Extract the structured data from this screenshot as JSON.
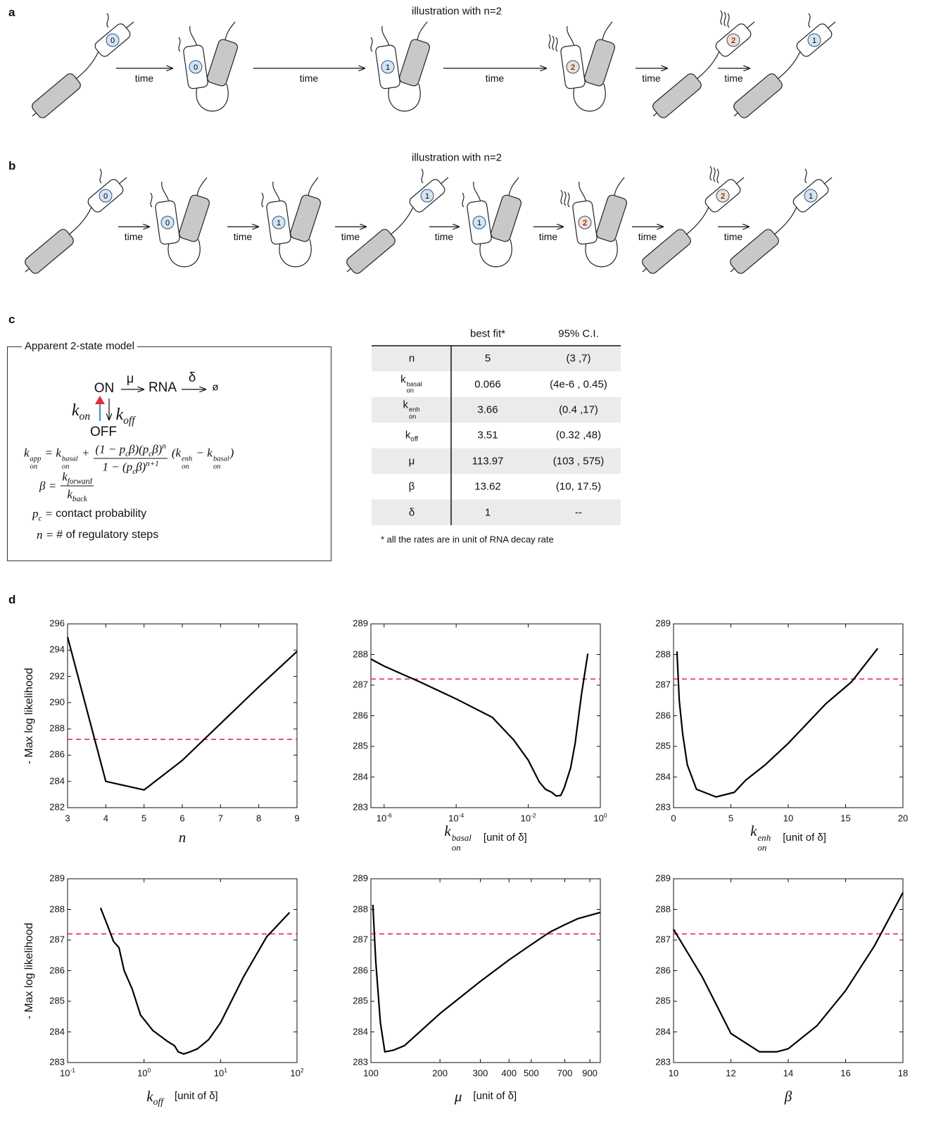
{
  "panel_labels": [
    "a",
    "b",
    "c",
    "d"
  ],
  "panel_a": {
    "title": "illustration with n=2",
    "arrow_label": "time",
    "steps": [
      "0",
      "0",
      "1",
      "2",
      "2",
      "1"
    ],
    "step_colors": [
      "#d3e5f4",
      "#d3e5f4",
      "#d3e5f4",
      "#f9dccb",
      "#f9dccb",
      "#d3e5f4"
    ]
  },
  "panel_b": {
    "title": "illustration with n=2",
    "arrow_label": "time",
    "steps": [
      "0",
      "0",
      "1",
      "1",
      "1",
      "2",
      "2",
      "1"
    ],
    "step_colors": [
      "#d3e5f4",
      "#d3e5f4",
      "#d3e5f4",
      "#d3e5f4",
      "#d3e5f4",
      "#f9dccb",
      "#f9dccb",
      "#d3e5f4"
    ]
  },
  "panel_c": {
    "box_title": "Apparent 2-state model",
    "scheme": {
      "on": "ON",
      "mu": "μ",
      "rna": "RNA",
      "delta": "δ",
      "null": "ø",
      "k_on": "k_{on}",
      "k_off": "k_{off}",
      "off": "OFF"
    },
    "equations": [
      {
        "lhs": "k_{on}^{app} = k_{on}^{basal} +",
        "num": "(1 − p_{c}β)(p_{c}β)^{n}",
        "den": "1 − (p_{c}β)^{n+1}",
        "rhs": "(k_{on}^{enh} − k_{on}^{basal})"
      },
      {
        "lhs": "β =",
        "num": "k_{forward}",
        "den": "k_{back}"
      },
      {
        "lhs": "p_{c} =",
        "text": "contact probability"
      },
      {
        "lhs": "n =",
        "text": "# of regulatory steps"
      }
    ],
    "table": {
      "header": [
        "best fit*",
        "95% C.I."
      ],
      "rows": [
        [
          "n",
          5,
          "(3 ,7)"
        ],
        [
          "k_{on}^{basal}",
          0.066,
          "(4e-6 , 0.45)"
        ],
        [
          "k_{on}^{enh}",
          3.66,
          "(0.4 ,17)"
        ],
        [
          "k_{off}",
          3.51,
          "(0.32 ,48)"
        ],
        [
          "μ",
          113.97,
          "(103 , 575)"
        ],
        [
          "β",
          13.62,
          "(10, 17.5)"
        ],
        [
          "δ",
          1,
          "--"
        ]
      ],
      "shading": "#ebebeb"
    },
    "footnote": "* all the rates are in unit of RNA decay rate"
  },
  "chart_data": [
    {
      "type": "line",
      "ylabel": "- Max log likelihood",
      "xlabel": "n",
      "x": [
        3,
        4,
        5,
        6,
        7,
        8,
        9
      ],
      "values": [
        295,
        284,
        283.35,
        285.6,
        288.4,
        291.2,
        293.9
      ],
      "color": "#000000",
      "xlim": [
        3,
        9
      ],
      "xticks": [
        3,
        4,
        5,
        6,
        7,
        8,
        9
      ],
      "ylim": [
        282,
        296
      ],
      "yticks": [
        282,
        284,
        286,
        288,
        290,
        292,
        294,
        296
      ],
      "threshold": 287.2,
      "threshold_color": "#e8295f"
    },
    {
      "type": "line",
      "xlabel": "k_{on}^{basal}",
      "xunit": "[unit of δ]",
      "xscale": "log",
      "x": [
        4.3e-07,
        1e-06,
        1e-05,
        0.0001,
        0.001,
        0.004,
        0.01,
        0.02,
        0.03,
        0.045,
        0.06,
        0.08,
        0.1,
        0.15,
        0.2,
        0.3,
        0.45
      ],
      "values": [
        287.85,
        287.62,
        287.1,
        286.55,
        285.95,
        285.2,
        284.55,
        283.85,
        283.6,
        283.5,
        283.38,
        283.4,
        283.65,
        284.3,
        285.1,
        286.7,
        288.03
      ],
      "color": "#000000",
      "xlim": [
        4.3e-07,
        1
      ],
      "xticks": [
        {
          "value": 1e-06,
          "label": "10^{-6}"
        },
        {
          "value": 0.0001,
          "label": "10^{-4}"
        },
        {
          "value": 0.01,
          "label": "10^{-2}"
        },
        {
          "value": 1,
          "label": "10^{0}"
        }
      ],
      "ylim": [
        283,
        289
      ],
      "yticks": [
        283,
        284,
        285,
        286,
        287,
        288,
        289
      ],
      "threshold": 287.2,
      "threshold_color": "#e8295f"
    },
    {
      "type": "line",
      "xlabel": "k_{on}^{enh}",
      "xunit": "[unit of δ]",
      "x": [
        0.3,
        0.5,
        0.8,
        1.2,
        2,
        3.7,
        5.3,
        6.3,
        8,
        10,
        13.3,
        15.5,
        17.8
      ],
      "values": [
        288.1,
        286.5,
        285.4,
        284.4,
        283.6,
        283.35,
        283.5,
        283.9,
        284.4,
        285.1,
        286.4,
        287.1,
        288.2
      ],
      "color": "#000000",
      "xlim": [
        0,
        20
      ],
      "xticks": [
        0,
        5,
        10,
        15,
        20
      ],
      "ylim": [
        283,
        289
      ],
      "yticks": [
        283,
        284,
        285,
        286,
        287,
        288,
        289
      ],
      "threshold": 287.2,
      "threshold_color": "#e8295f"
    },
    {
      "type": "line",
      "ylabel": "- Max log likelihood",
      "xlabel": "k_{off}",
      "xunit": "[unit of δ]",
      "xscale": "log",
      "x": [
        0.27,
        0.33,
        0.4,
        0.47,
        0.55,
        0.7,
        0.9,
        1.3,
        2,
        2.5,
        2.8,
        3.3,
        4,
        5,
        7,
        10,
        20,
        40,
        80
      ],
      "values": [
        288.05,
        287.5,
        286.95,
        286.75,
        286.0,
        285.4,
        284.55,
        284.05,
        283.7,
        283.55,
        283.35,
        283.28,
        283.35,
        283.45,
        283.75,
        284.3,
        285.8,
        287.1,
        287.9
      ],
      "color": "#000000",
      "xlim": [
        0.1,
        100
      ],
      "xticks": [
        {
          "value": 0.1,
          "label": "10^{-1}"
        },
        {
          "value": 1,
          "label": "10^{0}"
        },
        {
          "value": 10,
          "label": "10^{1}"
        },
        {
          "value": 100,
          "label": "10^{2}"
        }
      ],
      "ylim": [
        283,
        289
      ],
      "yticks": [
        283,
        284,
        285,
        286,
        287,
        288,
        289
      ],
      "threshold": 287.2,
      "threshold_color": "#e8295f"
    },
    {
      "type": "line",
      "xlabel": "μ",
      "xunit": "[unit of δ]",
      "xscale": "log",
      "x": [
        102,
        105,
        110,
        115,
        125,
        140,
        200,
        300,
        400,
        500,
        600,
        700,
        800,
        1000
      ],
      "values": [
        288.15,
        286.3,
        284.3,
        283.35,
        283.4,
        283.55,
        284.6,
        285.65,
        286.35,
        286.85,
        287.25,
        287.5,
        287.7,
        287.9
      ],
      "color": "#000000",
      "xlim": [
        100,
        1000
      ],
      "xticks": [
        100,
        200,
        300,
        400,
        500,
        700,
        900
      ],
      "ylim": [
        283,
        289
      ],
      "yticks": [
        283,
        284,
        285,
        286,
        287,
        288,
        289
      ],
      "threshold": 287.2,
      "threshold_color": "#e8295f"
    },
    {
      "type": "line",
      "xlabel": "β",
      "x": [
        10,
        11,
        12,
        13,
        13.6,
        14,
        15,
        16,
        17,
        18
      ],
      "values": [
        287.35,
        285.8,
        283.95,
        283.35,
        283.35,
        283.45,
        284.2,
        285.35,
        286.8,
        288.55
      ],
      "color": "#000000",
      "xlim": [
        10,
        18
      ],
      "xticks": [
        10,
        12,
        14,
        16,
        18
      ],
      "ylim": [
        283,
        289
      ],
      "yticks": [
        283,
        284,
        285,
        286,
        287,
        288,
        289
      ],
      "threshold": 287.2,
      "threshold_color": "#e8295f"
    }
  ]
}
